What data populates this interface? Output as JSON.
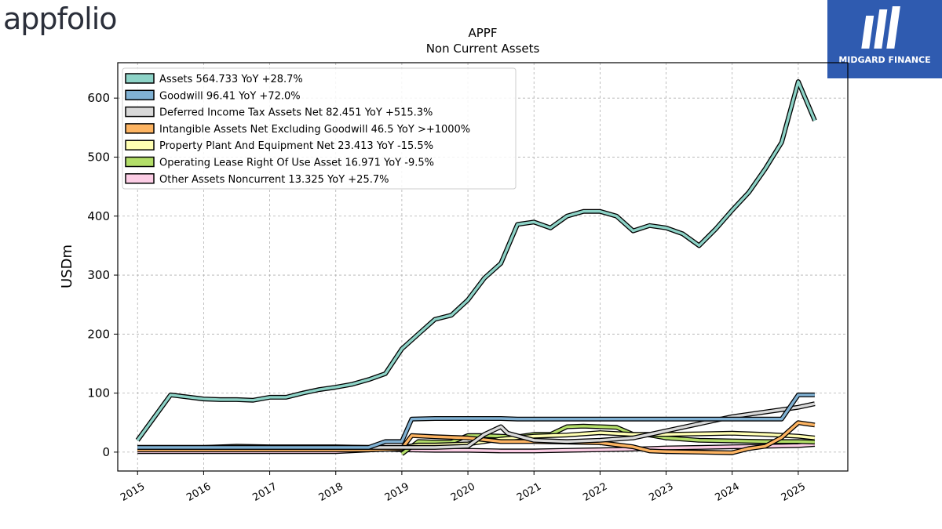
{
  "header": {
    "left_logo_text": "appfolio",
    "right_logo_text": "MIDGARD FINANCE",
    "brand_color": "#2f5bb0"
  },
  "chart_data": {
    "type": "line",
    "title": "APPF",
    "subtitle": "Non Current  Assets",
    "ylabel": "USDm",
    "xlabel": "",
    "ylim": [
      -32,
      660
    ],
    "xlim": [
      2014.7,
      2025.75
    ],
    "yticks": [
      0,
      100,
      200,
      300,
      400,
      500,
      600
    ],
    "xticks": [
      "2015",
      "2016",
      "2017",
      "2018",
      "2019",
      "2020",
      "2021",
      "2022",
      "2023",
      "2024",
      "2025"
    ],
    "grid": true,
    "legend_position": "top-left",
    "series": [
      {
        "name": "Assets  564.733 YoY +28.7%",
        "color": "#8dd3c7",
        "x": [
          2015.0,
          2015.5,
          2016.0,
          2016.25,
          2016.5,
          2016.75,
          2017.0,
          2017.25,
          2017.5,
          2017.75,
          2018.0,
          2018.25,
          2018.5,
          2018.75,
          2019.0,
          2019.25,
          2019.5,
          2019.75,
          2020.0,
          2020.25,
          2020.5,
          2020.75,
          2021.0,
          2021.25,
          2021.5,
          2021.75,
          2022.0,
          2022.25,
          2022.5,
          2022.75,
          2023.0,
          2023.25,
          2023.5,
          2023.75,
          2024.0,
          2024.25,
          2024.5,
          2024.75,
          2025.0,
          2025.25
        ],
        "y": [
          20,
          97,
          90,
          89,
          89,
          88,
          93,
          93,
          100,
          106,
          110,
          115,
          123,
          133,
          175,
          200,
          225,
          232,
          258,
          295,
          320,
          386,
          390,
          380,
          400,
          408,
          408,
          400,
          375,
          384,
          380,
          370,
          350,
          378,
          410,
          440,
          480,
          525,
          628,
          562
        ]
      },
      {
        "name": "Goodwill  96.41 YoY +72.0%",
        "color": "#80b1d3",
        "x": [
          2015.0,
          2018.5,
          2018.75,
          2019.0,
          2019.15,
          2019.5,
          2020.0,
          2020.5,
          2020.75,
          2021.0,
          2022.0,
          2023.0,
          2024.0,
          2024.75,
          2025.0,
          2025.25
        ],
        "y": [
          8,
          8,
          18,
          18,
          56,
          57,
          57,
          57,
          56,
          56,
          56,
          56,
          56,
          56,
          97,
          97
        ]
      },
      {
        "name": "Deferred Income Tax Assets Net  82.451 YoY +515.3%",
        "color": "#d9d9d9",
        "x": [
          2015.0,
          2019.0,
          2019.5,
          2020.0,
          2020.25,
          2020.5,
          2020.6,
          2021.0,
          2021.5,
          2022.0,
          2022.5,
          2023.0,
          2024.0,
          2025.0,
          2025.25
        ],
        "y": [
          8,
          8,
          8,
          10,
          30,
          43,
          32,
          20,
          18,
          20,
          24,
          36,
          60,
          76,
          82
        ]
      },
      {
        "name": "Intangible Assets Net Excluding Goodwill  46.5 YoY >+1000%",
        "color": "#fdb462",
        "x": [
          2015.0,
          2018.5,
          2019.0,
          2019.15,
          2019.5,
          2020.0,
          2020.5,
          2021.0,
          2021.5,
          2022.0,
          2022.5,
          2022.75,
          2023.0,
          2023.5,
          2024.0,
          2024.25,
          2024.5,
          2024.75,
          2025.0,
          2025.25
        ],
        "y": [
          4,
          4,
          6,
          28,
          26,
          24,
          18,
          18,
          17,
          16,
          9,
          2,
          1,
          0,
          -1,
          6,
          10,
          25,
          50,
          46
        ]
      },
      {
        "name": "Property Plant And Equipment Net  23.413 YoY -15.5%",
        "color": "#ffffb3",
        "x": [
          2015.0,
          2016.0,
          2016.5,
          2017.0,
          2017.5,
          2018.0,
          2018.5,
          2019.0,
          2019.25,
          2019.5,
          2020.0,
          2020.5,
          2021.0,
          2021.5,
          2022.0,
          2022.5,
          2023.0,
          2023.5,
          2024.0,
          2024.5,
          2025.0,
          2025.25
        ],
        "y": [
          8,
          8,
          10,
          9,
          9,
          9,
          8,
          8,
          12,
          12,
          14,
          22,
          27,
          29,
          33,
          30,
          30,
          31,
          32,
          30,
          27,
          24
        ]
      },
      {
        "name": "Operating Lease Right Of Use Asset  16.971 YoY -9.5%",
        "color": "#b3de69",
        "x": [
          2019.0,
          2019.25,
          2019.5,
          2019.75,
          2020.0,
          2020.25,
          2020.5,
          2020.75,
          2021.0,
          2021.25,
          2021.5,
          2021.75,
          2022.0,
          2022.25,
          2022.5,
          2022.75,
          2023.0,
          2023.5,
          2024.0,
          2024.5,
          2025.0,
          2025.25
        ],
        "y": [
          -3,
          18,
          17,
          17,
          28,
          28,
          27,
          26,
          30,
          30,
          43,
          44,
          43,
          42,
          30,
          29,
          24,
          20,
          19,
          18,
          18,
          17
        ]
      },
      {
        "name": "Other Assets Noncurrent  13.325 YoY +25.7%",
        "color": "#fccde5",
        "x": [
          2015.0,
          2016.0,
          2017.0,
          2018.0,
          2018.75,
          2019.0,
          2019.5,
          2020.0,
          2020.5,
          2021.0,
          2021.5,
          2022.0,
          2022.5,
          2023.0,
          2023.5,
          2024.0,
          2024.5,
          2025.0,
          2025.25
        ],
        "y": [
          1,
          1,
          1,
          1,
          5,
          4,
          3,
          3,
          2,
          2,
          3,
          4,
          5,
          7,
          8,
          9,
          10,
          11,
          13
        ]
      }
    ]
  }
}
